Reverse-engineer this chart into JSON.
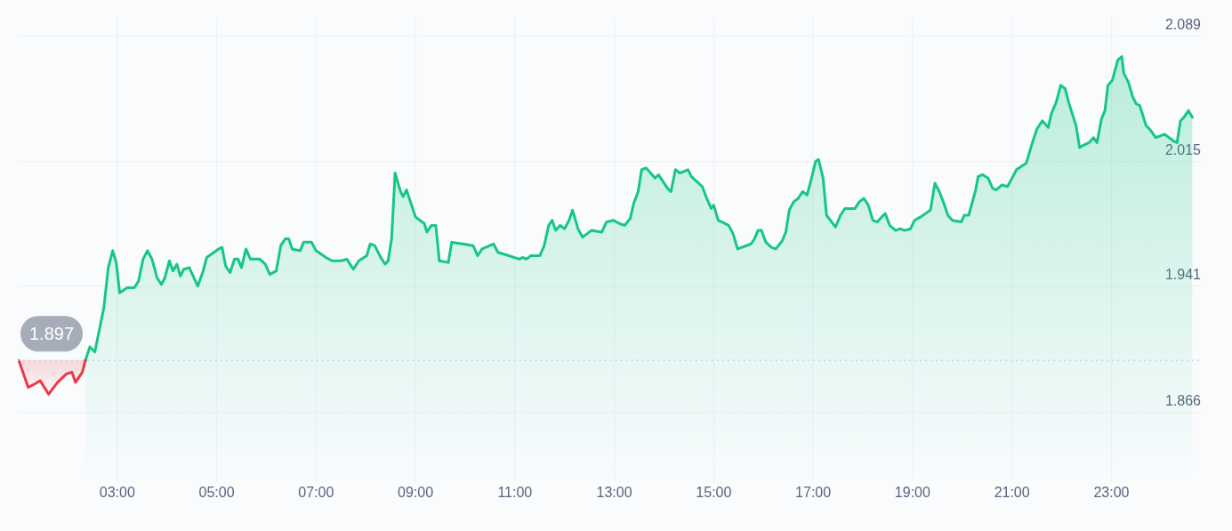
{
  "chart_data": {
    "type": "area",
    "xlim": [
      1.0,
      24.8
    ],
    "ylim": [
      1.825,
      2.1
    ],
    "xticks": [
      {
        "value": 3,
        "label": "03:00"
      },
      {
        "value": 5,
        "label": "05:00"
      },
      {
        "value": 7,
        "label": "07:00"
      },
      {
        "value": 9,
        "label": "09:00"
      },
      {
        "value": 11,
        "label": "11:00"
      },
      {
        "value": 13,
        "label": "13:00"
      },
      {
        "value": 15,
        "label": "15:00"
      },
      {
        "value": 17,
        "label": "17:00"
      },
      {
        "value": 19,
        "label": "19:00"
      },
      {
        "value": 21,
        "label": "21:00"
      },
      {
        "value": 23,
        "label": "23:00"
      }
    ],
    "yticks": [
      1.866,
      1.941,
      2.015,
      2.089
    ],
    "grid": true,
    "legend": false,
    "marker": "none",
    "line_style": "solid",
    "ref_lines": [
      {
        "axis": "y",
        "value": 1.897,
        "label": "1.897",
        "color": "#c8ccd4",
        "line_style": "dotted"
      }
    ],
    "series": [
      {
        "color": "#ea3943",
        "x": [
          1.02,
          1.21,
          1.34,
          1.45,
          1.62,
          1.8,
          1.98,
          2.09,
          2.16,
          2.3,
          2.36
        ],
        "values": [
          1.897,
          1.881,
          1.883,
          1.885,
          1.877,
          1.884,
          1.889,
          1.89,
          1.884,
          1.89,
          1.897
        ]
      },
      {
        "color": "#16c784",
        "x": [
          2.36,
          2.45,
          2.55,
          2.73,
          2.82,
          2.91,
          2.98,
          3.05,
          3.2,
          3.34,
          3.43,
          3.52,
          3.61,
          3.7,
          3.8,
          3.89,
          3.96,
          4.05,
          4.12,
          4.2,
          4.27,
          4.34,
          4.45,
          4.62,
          4.73,
          4.8,
          5.04,
          5.11,
          5.18,
          5.27,
          5.36,
          5.43,
          5.5,
          5.59,
          5.68,
          5.87,
          5.98,
          6.07,
          6.2,
          6.29,
          6.38,
          6.45,
          6.52,
          6.68,
          6.75,
          6.91,
          7.0,
          7.2,
          7.32,
          7.5,
          7.62,
          7.75,
          7.86,
          8.02,
          8.09,
          8.18,
          8.3,
          8.39,
          8.45,
          8.52,
          8.59,
          8.7,
          8.75,
          8.82,
          8.91,
          9.0,
          9.09,
          9.18,
          9.23,
          9.32,
          9.41,
          9.48,
          9.66,
          9.73,
          9.95,
          10.16,
          10.25,
          10.34,
          10.57,
          10.66,
          10.88,
          11.09,
          11.16,
          11.23,
          11.32,
          11.5,
          11.59,
          11.68,
          11.75,
          11.82,
          11.91,
          12.0,
          12.09,
          12.16,
          12.27,
          12.36,
          12.45,
          12.54,
          12.75,
          12.84,
          12.98,
          13.11,
          13.21,
          13.32,
          13.39,
          13.48,
          13.55,
          13.64,
          13.73,
          13.82,
          13.89,
          13.98,
          14.07,
          14.14,
          14.23,
          14.32,
          14.48,
          14.55,
          14.66,
          14.77,
          14.86,
          14.95,
          15.0,
          15.09,
          15.3,
          15.39,
          15.48,
          15.75,
          15.82,
          15.89,
          15.96,
          16.05,
          16.16,
          16.25,
          16.38,
          16.45,
          16.52,
          16.61,
          16.7,
          16.79,
          16.88,
          16.96,
          17.05,
          17.11,
          17.2,
          17.27,
          17.45,
          17.55,
          17.64,
          17.84,
          17.93,
          18.02,
          18.11,
          18.2,
          18.29,
          18.38,
          18.45,
          18.54,
          18.66,
          18.75,
          18.84,
          18.96,
          19.04,
          19.16,
          19.36,
          19.45,
          19.54,
          19.63,
          19.71,
          19.8,
          19.98,
          20.04,
          20.13,
          20.27,
          20.32,
          20.41,
          20.52,
          20.61,
          20.68,
          20.8,
          20.91,
          21.02,
          21.09,
          21.29,
          21.41,
          21.5,
          21.61,
          21.73,
          21.79,
          21.89,
          21.98,
          22.07,
          22.14,
          22.29,
          22.36,
          22.41,
          22.55,
          22.64,
          22.71,
          22.8,
          22.87,
          22.93,
          23.02,
          23.13,
          23.21,
          23.25,
          23.34,
          23.43,
          23.5,
          23.57,
          23.7,
          23.77,
          23.89,
          23.98,
          24.07,
          24.25,
          24.32,
          24.39,
          24.46,
          24.55,
          24.63
        ],
        "values": [
          1.897,
          1.905,
          1.902,
          1.928,
          1.952,
          1.962,
          1.955,
          1.937,
          1.94,
          1.94,
          1.944,
          1.957,
          1.962,
          1.957,
          1.946,
          1.942,
          1.946,
          1.956,
          1.95,
          1.954,
          1.947,
          1.951,
          1.952,
          1.941,
          1.95,
          1.958,
          1.963,
          1.964,
          1.953,
          1.949,
          1.957,
          1.957,
          1.952,
          1.963,
          1.957,
          1.957,
          1.954,
          1.948,
          1.95,
          1.965,
          1.969,
          1.969,
          1.963,
          1.962,
          1.967,
          1.967,
          1.962,
          1.958,
          1.956,
          1.956,
          1.957,
          1.951,
          1.956,
          1.959,
          1.966,
          1.965,
          1.958,
          1.954,
          1.956,
          1.969,
          2.008,
          1.997,
          1.994,
          1.998,
          1.99,
          1.982,
          1.98,
          1.978,
          1.973,
          1.977,
          1.977,
          1.956,
          1.955,
          1.967,
          1.966,
          1.965,
          1.959,
          1.963,
          1.966,
          1.961,
          1.959,
          1.957,
          1.958,
          1.957,
          1.959,
          1.959,
          1.965,
          1.977,
          1.98,
          1.974,
          1.977,
          1.975,
          1.98,
          1.986,
          1.975,
          1.97,
          1.972,
          1.974,
          1.973,
          1.979,
          1.98,
          1.978,
          1.977,
          1.981,
          1.99,
          1.997,
          2.01,
          2.011,
          2.008,
          2.005,
          2.007,
          2.003,
          1.999,
          1.997,
          2.01,
          2.008,
          2.01,
          2.006,
          2.003,
          2.0,
          1.993,
          1.987,
          1.989,
          1.98,
          1.977,
          1.972,
          1.963,
          1.966,
          1.969,
          1.974,
          1.974,
          1.967,
          1.964,
          1.963,
          1.968,
          1.973,
          1.986,
          1.991,
          1.993,
          1.997,
          1.995,
          2.004,
          2.015,
          2.016,
          2.005,
          1.983,
          1.976,
          1.983,
          1.987,
          1.987,
          1.991,
          1.993,
          1.989,
          1.98,
          1.979,
          1.982,
          1.984,
          1.977,
          1.974,
          1.975,
          1.974,
          1.975,
          1.98,
          1.982,
          1.986,
          2.002,
          1.997,
          1.99,
          1.983,
          1.98,
          1.979,
          1.983,
          1.983,
          1.998,
          2.006,
          2.007,
          2.005,
          1.999,
          1.998,
          2.001,
          2.0,
          2.006,
          2.01,
          2.014,
          2.026,
          2.034,
          2.039,
          2.035,
          2.043,
          2.05,
          2.06,
          2.058,
          2.05,
          2.036,
          2.023,
          2.024,
          2.026,
          2.029,
          2.026,
          2.04,
          2.045,
          2.06,
          2.063,
          2.075,
          2.077,
          2.067,
          2.062,
          2.053,
          2.049,
          2.048,
          2.036,
          2.034,
          2.029,
          2.03,
          2.031,
          2.027,
          2.026,
          2.039,
          2.041,
          2.045,
          2.041
        ]
      }
    ]
  }
}
